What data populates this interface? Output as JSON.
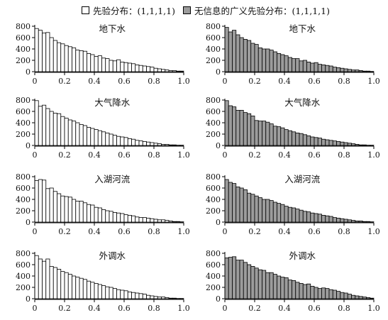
{
  "legend": [
    {
      "label": "先验分布：(1,1,1,1)",
      "color": "#ffffff"
    },
    {
      "label": "无信息的广义先验分布：(1,1,1,1)",
      "color": "#9c9c9c"
    }
  ],
  "chart_data": [
    {
      "type": "bar",
      "title": "地下水",
      "series_name": "先验分布：(1,1,1,1)",
      "color": "#ffffff",
      "bin_start": 0,
      "bin_width": 0.025,
      "xlim": [
        0,
        1
      ],
      "ylim": [
        0,
        800
      ],
      "xticks": [
        "0",
        "0.2",
        "0.4",
        "0.6",
        "0.8",
        "1.0"
      ],
      "yticks": [
        "0",
        "200",
        "400",
        "600",
        "800"
      ],
      "values": [
        760,
        730,
        680,
        690,
        600,
        550,
        510,
        490,
        460,
        440,
        420,
        380,
        370,
        360,
        320,
        300,
        270,
        280,
        240,
        230,
        200,
        190,
        210,
        170,
        160,
        150,
        140,
        120,
        110,
        100,
        90,
        80,
        60,
        50,
        40,
        30,
        20,
        20,
        10,
        10
      ]
    },
    {
      "type": "bar",
      "title": "地下水",
      "series_name": "无信息的广义先验分布：(1,1,1,1)",
      "color": "#9c9c9c",
      "bin_start": 0,
      "bin_width": 0.025,
      "xlim": [
        0,
        1
      ],
      "ylim": [
        0,
        800
      ],
      "xticks": [
        "0",
        "0.2",
        "0.4",
        "0.6",
        "0.8",
        "1.0"
      ],
      "yticks": [
        "0",
        "200",
        "400",
        "600",
        "800"
      ],
      "values": [
        780,
        700,
        730,
        650,
        600,
        570,
        550,
        500,
        480,
        420,
        400,
        400,
        380,
        350,
        320,
        300,
        280,
        250,
        230,
        230,
        190,
        200,
        170,
        150,
        160,
        130,
        120,
        110,
        100,
        80,
        70,
        60,
        50,
        40,
        30,
        30,
        20,
        10,
        10,
        5
      ]
    },
    {
      "type": "bar",
      "title": "大气降水",
      "series_name": "先验分布：(1,1,1,1)",
      "color": "#ffffff",
      "bin_start": 0,
      "bin_width": 0.025,
      "xlim": [
        0,
        1
      ],
      "ylim": [
        0,
        800
      ],
      "xticks": [
        "0",
        "0.2",
        "0.4",
        "0.6",
        "0.8",
        "1.0"
      ],
      "yticks": [
        "0",
        "200",
        "400",
        "600",
        "800"
      ],
      "values": [
        790,
        690,
        710,
        650,
        600,
        570,
        560,
        510,
        480,
        450,
        430,
        400,
        370,
        350,
        320,
        300,
        280,
        260,
        240,
        220,
        200,
        180,
        160,
        150,
        140,
        120,
        110,
        90,
        80,
        70,
        60,
        50,
        40,
        30,
        20,
        20,
        10,
        10,
        5,
        5
      ]
    },
    {
      "type": "bar",
      "title": "大气降水",
      "series_name": "无信息的广义先验分布：(1,1,1,1)",
      "color": "#9c9c9c",
      "bin_start": 0,
      "bin_width": 0.025,
      "xlim": [
        0,
        1
      ],
      "ylim": [
        0,
        800
      ],
      "xticks": [
        "0",
        "0.2",
        "0.4",
        "0.6",
        "0.8",
        "1.0"
      ],
      "yticks": [
        "0",
        "200",
        "400",
        "600",
        "800"
      ],
      "values": [
        790,
        700,
        680,
        620,
        620,
        580,
        560,
        520,
        440,
        430,
        430,
        410,
        380,
        340,
        330,
        310,
        280,
        260,
        240,
        220,
        210,
        190,
        170,
        150,
        140,
        130,
        110,
        100,
        90,
        80,
        70,
        60,
        50,
        40,
        30,
        20,
        10,
        10,
        5,
        5
      ]
    },
    {
      "type": "bar",
      "title": "入湖河流",
      "series_name": "先验分布：(1,1,1,1)",
      "color": "#ffffff",
      "bin_start": 0,
      "bin_width": 0.025,
      "xlim": [
        0,
        1
      ],
      "ylim": [
        0,
        800
      ],
      "xticks": [
        "0",
        "0.2",
        "0.4",
        "0.6",
        "0.8",
        "1.0"
      ],
      "yticks": [
        "0",
        "200",
        "400",
        "600",
        "800"
      ],
      "values": [
        730,
        750,
        740,
        590,
        600,
        540,
        500,
        460,
        450,
        440,
        400,
        370,
        370,
        340,
        310,
        300,
        260,
        250,
        220,
        200,
        190,
        170,
        160,
        150,
        130,
        120,
        110,
        90,
        80,
        80,
        70,
        60,
        50,
        40,
        40,
        30,
        20,
        10,
        10,
        5
      ]
    },
    {
      "type": "bar",
      "title": "入湖河流",
      "series_name": "无信息的广义先验分布：(1,1,1,1)",
      "color": "#9c9c9c",
      "bin_start": 0,
      "bin_width": 0.025,
      "xlim": [
        0,
        1
      ],
      "ylim": [
        0,
        800
      ],
      "xticks": [
        "0",
        "0.2",
        "0.4",
        "0.6",
        "0.8",
        "1.0"
      ],
      "yticks": [
        "0",
        "200",
        "400",
        "600",
        "800"
      ],
      "values": [
        750,
        700,
        680,
        620,
        600,
        570,
        510,
        490,
        460,
        430,
        400,
        400,
        380,
        350,
        330,
        310,
        280,
        260,
        250,
        230,
        210,
        190,
        180,
        160,
        150,
        140,
        120,
        110,
        100,
        80,
        70,
        60,
        50,
        40,
        30,
        20,
        20,
        10,
        10,
        5
      ]
    },
    {
      "type": "bar",
      "title": "外调水",
      "series_name": "先验分布：(1,1,1,1)",
      "color": "#ffffff",
      "bin_start": 0,
      "bin_width": 0.025,
      "xlim": [
        0,
        1
      ],
      "ylim": [
        0,
        800
      ],
      "xticks": [
        "0",
        "0.2",
        "0.4",
        "0.6",
        "0.8",
        "1.0"
      ],
      "yticks": [
        "0",
        "200",
        "400",
        "600",
        "800"
      ],
      "values": [
        760,
        700,
        660,
        700,
        570,
        550,
        520,
        480,
        460,
        430,
        400,
        380,
        360,
        340,
        310,
        290,
        270,
        250,
        230,
        210,
        200,
        180,
        160,
        150,
        140,
        120,
        110,
        100,
        90,
        80,
        60,
        50,
        40,
        30,
        30,
        20,
        10,
        10,
        5,
        5
      ]
    },
    {
      "type": "bar",
      "title": "外调水",
      "series_name": "无信息的广义先验分布：(1,1,1,1)",
      "color": "#9c9c9c",
      "bin_start": 0,
      "bin_width": 0.025,
      "xlim": [
        0,
        1
      ],
      "ylim": [
        0,
        800
      ],
      "xticks": [
        "0",
        "0.2",
        "0.4",
        "0.6",
        "0.8",
        "1.0"
      ],
      "yticks": [
        "0",
        "200",
        "400",
        "600",
        "800"
      ],
      "values": [
        720,
        730,
        740,
        680,
        680,
        640,
        600,
        570,
        540,
        510,
        500,
        460,
        460,
        430,
        400,
        380,
        370,
        330,
        320,
        290,
        270,
        250,
        260,
        220,
        200,
        180,
        190,
        180,
        160,
        150,
        130,
        110,
        100,
        80,
        60,
        50,
        40,
        30,
        20,
        10
      ]
    }
  ]
}
